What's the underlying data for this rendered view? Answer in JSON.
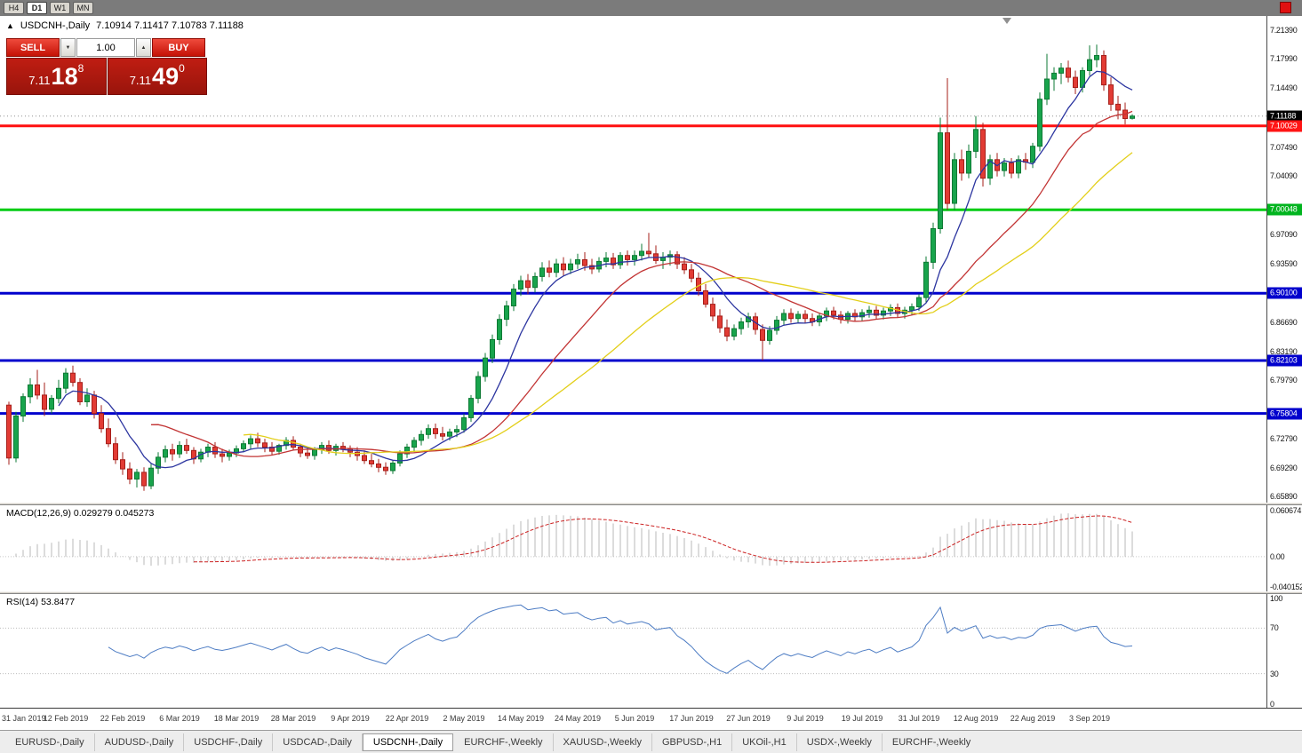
{
  "toolbar": {
    "timeframes": [
      "H4",
      "D1",
      "W1",
      "MN"
    ],
    "active_timeframe": "D1"
  },
  "window_title": {
    "arrow": "▲",
    "symbol": "USDCNH-,Daily",
    "ohlc": "7.10914 7.11417 7.10783 7.11188"
  },
  "trade_panel": {
    "sell_label": "SELL",
    "buy_label": "BUY",
    "volume": "1.00",
    "stepper_down_icon": "▼",
    "stepper_up_icon": "▲",
    "sell_price_prefix": "7.11",
    "sell_price_big": "18",
    "sell_price_sup": "8",
    "buy_price_prefix": "7.11",
    "buy_price_big": "49",
    "buy_price_sup": "0"
  },
  "price_axis": {
    "ticks": [
      {
        "label": "7.21390",
        "value": 7.2139
      },
      {
        "label": "7.17990",
        "value": 7.1799
      },
      {
        "label": "7.14490",
        "value": 7.1449
      },
      {
        "label": "7.07490",
        "value": 7.0749
      },
      {
        "label": "7.04090",
        "value": 7.0409
      },
      {
        "label": "6.97090",
        "value": 6.9709
      },
      {
        "label": "6.93590",
        "value": 6.9359
      },
      {
        "label": "6.86690",
        "value": 6.8669
      },
      {
        "label": "6.83190",
        "value": 6.8319
      },
      {
        "label": "6.79790",
        "value": 6.7979
      },
      {
        "label": "6.72790",
        "value": 6.7279
      },
      {
        "label": "6.69290",
        "value": 6.6929
      },
      {
        "label": "6.65890",
        "value": 6.6589
      }
    ],
    "badges": [
      {
        "label": "7.11188",
        "value": 7.11188,
        "bg": "#000000",
        "fg": "#ffffff",
        "name": "current-price-badge"
      },
      {
        "label": "7.10029",
        "value": 7.10029,
        "bg": "#ff1414",
        "fg": "#ffffff",
        "name": "resistance-price-badge"
      },
      {
        "label": "7.00048",
        "value": 7.00048,
        "bg": "#00b41e",
        "fg": "#ffffff",
        "name": "level-price-badge"
      },
      {
        "label": "6.90100",
        "value": 6.901,
        "bg": "#0000cd",
        "fg": "#ffffff",
        "name": "support-price-badge"
      },
      {
        "label": "6.82103",
        "value": 6.82103,
        "bg": "#0000cd",
        "fg": "#ffffff",
        "name": "support-price-badge"
      },
      {
        "label": "6.75804",
        "value": 6.75804,
        "bg": "#0000cd",
        "fg": "#ffffff",
        "name": "support-price-badge"
      }
    ]
  },
  "hlines": [
    {
      "value": 7.10029,
      "color": "#ff0f0f",
      "width": 3
    },
    {
      "value": 7.00048,
      "color": "#00cc14",
      "width": 3
    },
    {
      "value": 6.901,
      "color": "#0000cd",
      "width": 3
    },
    {
      "value": 6.82103,
      "color": "#0000cd",
      "width": 3
    },
    {
      "value": 6.75804,
      "color": "#0000cd",
      "width": 3
    }
  ],
  "macd_panel": {
    "label": "MACD(12,26,9) 0.029279 0.045273",
    "axis_ticks": [
      {
        "label": "0.060674",
        "value": 0.060674
      },
      {
        "label": "0.00",
        "value": 0
      },
      {
        "label": "-0.040152",
        "value": -0.040152
      }
    ],
    "range": [
      -0.046,
      0.068
    ],
    "histogram_color": "#b8b8b8",
    "signal_color": "#cc2222"
  },
  "rsi_panel": {
    "label": "RSI(14) 53.8477",
    "axis_ticks": [
      {
        "label": "100",
        "value": 100
      },
      {
        "label": "70",
        "value": 70
      },
      {
        "label": "30",
        "value": 30
      },
      {
        "label": "0",
        "value": 0
      }
    ],
    "levels": [
      70,
      30
    ],
    "line_color": "#4e7dc4"
  },
  "date_axis": [
    {
      "label": "31 Jan 2019",
      "bar": 0
    },
    {
      "label": "12 Feb 2019",
      "bar": 8
    },
    {
      "label": "22 Feb 2019",
      "bar": 16
    },
    {
      "label": "6 Mar 2019",
      "bar": 24
    },
    {
      "label": "18 Mar 2019",
      "bar": 32
    },
    {
      "label": "28 Mar 2019",
      "bar": 40
    },
    {
      "label": "9 Apr 2019",
      "bar": 48
    },
    {
      "label": "22 Apr 2019",
      "bar": 56
    },
    {
      "label": "2 May 2019",
      "bar": 64
    },
    {
      "label": "14 May 2019",
      "bar": 72
    },
    {
      "label": "24 May 2019",
      "bar": 80
    },
    {
      "label": "5 Jun 2019",
      "bar": 88
    },
    {
      "label": "17 Jun 2019",
      "bar": 96
    },
    {
      "label": "27 Jun 2019",
      "bar": 104
    },
    {
      "label": "9 Jul 2019",
      "bar": 112
    },
    {
      "label": "19 Jul 2019",
      "bar": 120
    },
    {
      "label": "31 Jul 2019",
      "bar": 128
    },
    {
      "label": "12 Aug 2019",
      "bar": 136
    },
    {
      "label": "22 Aug 2019",
      "bar": 144
    },
    {
      "label": "3 Sep 2019",
      "bar": 152
    }
  ],
  "tabs": {
    "items": [
      "EURUSD-,Daily",
      "AUDUSD-,Daily",
      "USDCHF-,Daily",
      "USDCAD-,Daily",
      "USDCNH-,Daily",
      "EURCHF-,Weekly",
      "XAUUSD-,Weekly",
      "GBPUSD-,H1",
      "UKOil-,H1",
      "USDX-,Weekly",
      "EURCHF-,Weekly"
    ],
    "active_index": 4
  },
  "chart_data": {
    "type": "candlestick",
    "symbol": "USDCNH-,Daily",
    "timeframe": "Daily",
    "current_ohlc": {
      "open": 7.10914,
      "high": 7.11417,
      "low": 7.10783,
      "close": 7.11188
    },
    "price_range": [
      6.652,
      7.231
    ],
    "bull_color": "#18a44c",
    "bull_stroke": "#0d7a34",
    "bear_color": "#e23b34",
    "bear_stroke": "#a61f1a",
    "moving_averages": [
      {
        "period": 8,
        "color": "#2c35a0"
      },
      {
        "period": 21,
        "color": "#c23434"
      },
      {
        "period": 34,
        "color": "#e3cf1a"
      }
    ],
    "indicators": [
      {
        "name": "MACD",
        "params": "12,26,9",
        "values": [
          0.029279,
          0.045273
        ]
      },
      {
        "name": "RSI",
        "params": "14",
        "value": 53.8477
      }
    ],
    "candles": [
      [
        6.768,
        6.772,
        6.697,
        6.705
      ],
      [
        6.705,
        6.76,
        6.7,
        6.755
      ],
      [
        6.755,
        6.782,
        6.748,
        6.778
      ],
      [
        6.778,
        6.8,
        6.77,
        6.792
      ],
      [
        6.792,
        6.81,
        6.775,
        6.78
      ],
      [
        6.78,
        6.795,
        6.755,
        6.763
      ],
      [
        6.763,
        6.78,
        6.758,
        6.776
      ],
      [
        6.776,
        6.798,
        6.77,
        6.788
      ],
      [
        6.788,
        6.812,
        6.782,
        6.806
      ],
      [
        6.806,
        6.815,
        6.79,
        6.795
      ],
      [
        6.795,
        6.8,
        6.768,
        6.772
      ],
      [
        6.772,
        6.788,
        6.766,
        6.78
      ],
      [
        6.78,
        6.785,
        6.752,
        6.758
      ],
      [
        6.758,
        6.768,
        6.735,
        6.74
      ],
      [
        6.74,
        6.752,
        6.718,
        6.722
      ],
      [
        6.722,
        6.73,
        6.698,
        6.703
      ],
      [
        6.703,
        6.712,
        6.685,
        6.692
      ],
      [
        6.692,
        6.7,
        6.674,
        6.68
      ],
      [
        6.68,
        6.692,
        6.67,
        6.688
      ],
      [
        6.688,
        6.694,
        6.666,
        6.672
      ],
      [
        6.672,
        6.698,
        6.668,
        6.693
      ],
      [
        6.693,
        6.712,
        6.686,
        6.706
      ],
      [
        6.706,
        6.72,
        6.7,
        6.715
      ],
      [
        6.715,
        6.722,
        6.702,
        6.71
      ],
      [
        6.71,
        6.725,
        6.705,
        6.72
      ],
      [
        6.72,
        6.728,
        6.71,
        6.714
      ],
      [
        6.714,
        6.718,
        6.698,
        6.704
      ],
      [
        6.704,
        6.716,
        6.7,
        6.712
      ],
      [
        6.712,
        6.722,
        6.706,
        6.718
      ],
      [
        6.718,
        6.724,
        6.705,
        6.71
      ],
      [
        6.71,
        6.716,
        6.7,
        6.707
      ],
      [
        6.707,
        6.715,
        6.702,
        6.711
      ],
      [
        6.711,
        6.72,
        6.706,
        6.716
      ],
      [
        6.716,
        6.726,
        6.712,
        6.722
      ],
      [
        6.722,
        6.732,
        6.716,
        6.728
      ],
      [
        6.728,
        6.735,
        6.718,
        6.723
      ],
      [
        6.723,
        6.728,
        6.712,
        6.718
      ],
      [
        6.718,
        6.724,
        6.708,
        6.713
      ],
      [
        6.713,
        6.722,
        6.709,
        6.72
      ],
      [
        6.72,
        6.73,
        6.715,
        6.726
      ],
      [
        6.726,
        6.731,
        6.714,
        6.718
      ],
      [
        6.718,
        6.722,
        6.706,
        6.711
      ],
      [
        6.711,
        6.718,
        6.704,
        6.708
      ],
      [
        6.708,
        6.718,
        6.703,
        6.715
      ],
      [
        6.715,
        6.724,
        6.71,
        6.72
      ],
      [
        6.72,
        6.726,
        6.71,
        6.714
      ],
      [
        6.714,
        6.722,
        6.708,
        6.719
      ],
      [
        6.719,
        6.724,
        6.712,
        6.716
      ],
      [
        6.716,
        6.72,
        6.706,
        6.712
      ],
      [
        6.712,
        6.718,
        6.702,
        6.708
      ],
      [
        6.708,
        6.714,
        6.698,
        6.702
      ],
      [
        6.702,
        6.71,
        6.694,
        6.698
      ],
      [
        6.698,
        6.704,
        6.688,
        6.694
      ],
      [
        6.694,
        6.7,
        6.685,
        6.69
      ],
      [
        6.69,
        6.702,
        6.686,
        6.699
      ],
      [
        6.699,
        6.714,
        6.695,
        6.71
      ],
      [
        6.71,
        6.722,
        6.705,
        6.718
      ],
      [
        6.718,
        6.73,
        6.712,
        6.726
      ],
      [
        6.726,
        6.738,
        6.72,
        6.733
      ],
      [
        6.733,
        6.745,
        6.728,
        6.74
      ],
      [
        6.74,
        6.746,
        6.728,
        6.734
      ],
      [
        6.734,
        6.742,
        6.726,
        6.731
      ],
      [
        6.731,
        6.74,
        6.726,
        6.736
      ],
      [
        6.736,
        6.744,
        6.73,
        6.739
      ],
      [
        6.739,
        6.758,
        6.735,
        6.753
      ],
      [
        6.753,
        6.78,
        6.748,
        6.776
      ],
      [
        6.776,
        6.808,
        6.77,
        6.802
      ],
      [
        6.802,
        6.83,
        6.796,
        6.824
      ],
      [
        6.824,
        6.852,
        6.818,
        6.846
      ],
      [
        6.846,
        6.876,
        6.84,
        6.87
      ],
      [
        6.87,
        6.892,
        6.862,
        6.886
      ],
      [
        6.886,
        6.912,
        6.88,
        6.906
      ],
      [
        6.906,
        6.922,
        6.898,
        6.916
      ],
      [
        6.916,
        6.924,
        6.9,
        6.908
      ],
      [
        6.908,
        6.926,
        6.902,
        6.921
      ],
      [
        6.921,
        6.938,
        6.915,
        6.931
      ],
      [
        6.931,
        6.94,
        6.92,
        6.926
      ],
      [
        6.926,
        6.942,
        6.92,
        6.936
      ],
      [
        6.936,
        6.944,
        6.922,
        6.929
      ],
      [
        6.929,
        6.942,
        6.924,
        6.936
      ],
      [
        6.936,
        6.948,
        6.93,
        6.941
      ],
      [
        6.941,
        6.95,
        6.928,
        6.934
      ],
      [
        6.934,
        6.942,
        6.924,
        6.93
      ],
      [
        6.93,
        6.944,
        6.926,
        6.939
      ],
      [
        6.939,
        6.95,
        6.932,
        6.943
      ],
      [
        6.943,
        6.949,
        6.93,
        6.935
      ],
      [
        6.935,
        6.95,
        6.93,
        6.946
      ],
      [
        6.946,
        6.952,
        6.934,
        6.941
      ],
      [
        6.941,
        6.952,
        6.934,
        6.946
      ],
      [
        6.946,
        6.96,
        6.94,
        6.951
      ],
      [
        6.951,
        6.973,
        6.944,
        6.948
      ],
      [
        6.948,
        6.958,
        6.936,
        6.94
      ],
      [
        6.94,
        6.95,
        6.93,
        6.944
      ],
      [
        6.944,
        6.952,
        6.934,
        6.947
      ],
      [
        6.947,
        6.951,
        6.93,
        6.936
      ],
      [
        6.936,
        6.944,
        6.924,
        6.929
      ],
      [
        6.929,
        6.936,
        6.914,
        6.919
      ],
      [
        6.919,
        6.926,
        6.898,
        6.904
      ],
      [
        6.904,
        6.912,
        6.884,
        6.888
      ],
      [
        6.888,
        6.896,
        6.868,
        6.874
      ],
      [
        6.874,
        6.882,
        6.854,
        6.86
      ],
      [
        6.86,
        6.87,
        6.844,
        6.85
      ],
      [
        6.85,
        6.864,
        6.845,
        6.859
      ],
      [
        6.859,
        6.872,
        6.852,
        6.867
      ],
      [
        6.867,
        6.878,
        6.86,
        6.873
      ],
      [
        6.873,
        6.878,
        6.852,
        6.858
      ],
      [
        6.858,
        6.864,
        6.821,
        6.845
      ],
      [
        6.845,
        6.862,
        6.84,
        6.857
      ],
      [
        6.857,
        6.874,
        6.852,
        6.869
      ],
      [
        6.869,
        6.882,
        6.863,
        6.877
      ],
      [
        6.877,
        6.883,
        6.866,
        6.871
      ],
      [
        6.871,
        6.88,
        6.865,
        6.876
      ],
      [
        6.876,
        6.881,
        6.866,
        6.871
      ],
      [
        6.871,
        6.877,
        6.862,
        6.867
      ],
      [
        6.867,
        6.878,
        6.862,
        6.874
      ],
      [
        6.874,
        6.884,
        6.868,
        6.88
      ],
      [
        6.88,
        6.885,
        6.87,
        6.875
      ],
      [
        6.875,
        6.88,
        6.865,
        6.87
      ],
      [
        6.87,
        6.88,
        6.865,
        6.877
      ],
      [
        6.877,
        6.882,
        6.868,
        6.873
      ],
      [
        6.873,
        6.882,
        6.868,
        6.878
      ],
      [
        6.878,
        6.886,
        6.872,
        6.881
      ],
      [
        6.881,
        6.886,
        6.87,
        6.875
      ],
      [
        6.875,
        6.884,
        6.87,
        6.88
      ],
      [
        6.88,
        6.888,
        6.874,
        6.884
      ],
      [
        6.884,
        6.889,
        6.872,
        6.877
      ],
      [
        6.877,
        6.885,
        6.871,
        6.881
      ],
      [
        6.881,
        6.889,
        6.875,
        6.885
      ],
      [
        6.885,
        6.9,
        6.88,
        6.896
      ],
      [
        6.896,
        6.945,
        6.89,
        6.938
      ],
      [
        6.938,
        6.985,
        6.93,
        6.978
      ],
      [
        6.978,
        7.11,
        6.972,
        7.092
      ],
      [
        7.092,
        7.157,
        7.0,
        7.008
      ],
      [
        7.008,
        7.068,
        7.0,
        7.06
      ],
      [
        7.06,
        7.072,
        7.035,
        7.044
      ],
      [
        7.044,
        7.078,
        7.038,
        7.07
      ],
      [
        7.07,
        7.112,
        7.062,
        7.096
      ],
      [
        7.096,
        7.104,
        7.028,
        7.038
      ],
      [
        7.038,
        7.066,
        7.03,
        7.06
      ],
      [
        7.06,
        7.068,
        7.04,
        7.047
      ],
      [
        7.047,
        7.062,
        7.04,
        7.056
      ],
      [
        7.056,
        7.062,
        7.038,
        7.044
      ],
      [
        7.044,
        7.065,
        7.038,
        7.06
      ],
      [
        7.06,
        7.068,
        7.048,
        7.057
      ],
      [
        7.057,
        7.08,
        7.05,
        7.076
      ],
      [
        7.076,
        7.14,
        7.07,
        7.132
      ],
      [
        7.132,
        7.186,
        7.125,
        7.156
      ],
      [
        7.156,
        7.17,
        7.142,
        7.163
      ],
      [
        7.163,
        7.175,
        7.15,
        7.169
      ],
      [
        7.169,
        7.178,
        7.152,
        7.158
      ],
      [
        7.158,
        7.166,
        7.138,
        7.146
      ],
      [
        7.146,
        7.17,
        7.14,
        7.166
      ],
      [
        7.166,
        7.196,
        7.16,
        7.179
      ],
      [
        7.179,
        7.197,
        7.17,
        7.184
      ],
      [
        7.184,
        7.19,
        7.142,
        7.149
      ],
      [
        7.149,
        7.158,
        7.118,
        7.126
      ],
      [
        7.126,
        7.136,
        7.108,
        7.119
      ],
      [
        7.119,
        7.128,
        7.102,
        7.109
      ],
      [
        7.10914,
        7.11417,
        7.10783,
        7.11188
      ]
    ]
  }
}
